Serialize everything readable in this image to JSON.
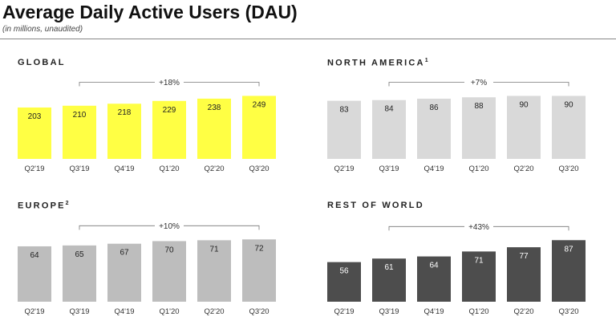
{
  "header": {
    "title": "Average Daily Active Users (DAU)",
    "subtitle": "(in millions, unaudited)"
  },
  "chart_data": [
    {
      "type": "bar",
      "title": "GLOBAL",
      "categories": [
        "Q2'19",
        "Q3'19",
        "Q4'19",
        "Q1'20",
        "Q2'20",
        "Q3'20"
      ],
      "values": [
        203,
        210,
        218,
        229,
        238,
        249
      ],
      "growth_annotation": "+18%",
      "bar_color": "#ffff44",
      "label_color": "#222222",
      "ylim": [
        0,
        260
      ]
    },
    {
      "type": "bar",
      "title": "NORTH AMERICA",
      "title_superscript": "1",
      "categories": [
        "Q2'19",
        "Q3'19",
        "Q4'19",
        "Q1'20",
        "Q2'20",
        "Q3'20"
      ],
      "values": [
        83,
        84,
        86,
        88,
        90,
        90
      ],
      "growth_annotation": "+7%",
      "bar_color": "#d9d9d9",
      "label_color": "#222222",
      "ylim": [
        0,
        94
      ]
    },
    {
      "type": "bar",
      "title": "EUROPE",
      "title_superscript": "2",
      "categories": [
        "Q2'19",
        "Q3'19",
        "Q4'19",
        "Q1'20",
        "Q2'20",
        "Q3'20"
      ],
      "values": [
        64,
        65,
        67,
        70,
        71,
        72
      ],
      "growth_annotation": "+10%",
      "bar_color": "#bdbdbd",
      "label_color": "#222222",
      "ylim": [
        0,
        76
      ]
    },
    {
      "type": "bar",
      "title": "REST OF WORLD",
      "categories": [
        "Q2'19",
        "Q3'19",
        "Q4'19",
        "Q1'20",
        "Q2'20",
        "Q3'20"
      ],
      "values": [
        56,
        61,
        64,
        71,
        77,
        87
      ],
      "growth_annotation": "+43%",
      "bar_color": "#4d4d4d",
      "label_color": "#ffffff",
      "ylim": [
        0,
        93
      ]
    }
  ]
}
